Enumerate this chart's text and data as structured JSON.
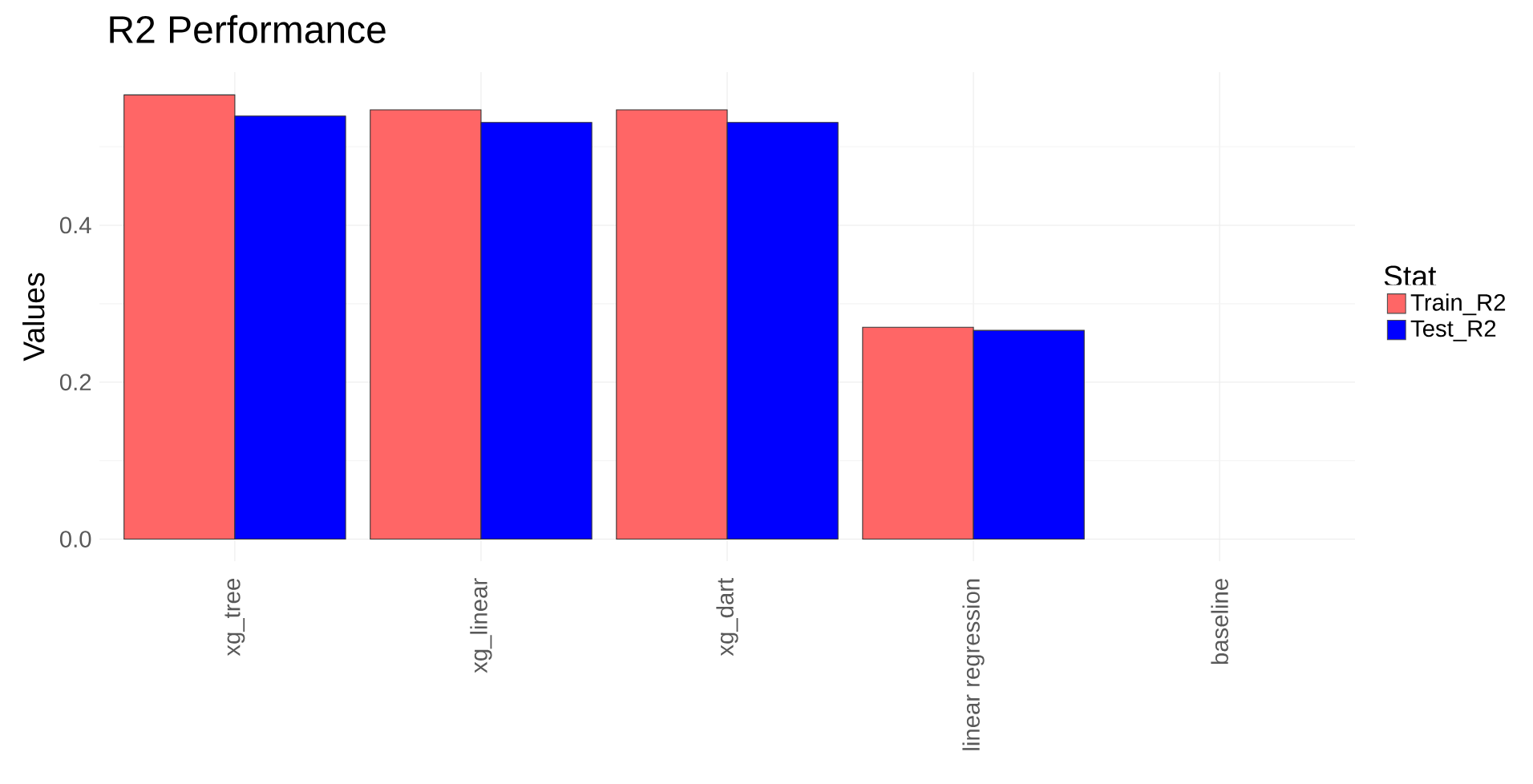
{
  "chart_data": {
    "type": "bar",
    "title": "R2 Performance",
    "ylabel": "Values",
    "legend_title": "Stat",
    "categories": [
      "xg_tree",
      "xg_linear",
      "xg_dart",
      "linear regression",
      "baseline"
    ],
    "series": [
      {
        "name": "Train_R2",
        "color": "#ff6666",
        "values": [
          0.566,
          0.547,
          0.547,
          0.27,
          null
        ]
      },
      {
        "name": "Test_R2",
        "color": "#0000ff",
        "values": [
          0.539,
          0.531,
          0.531,
          0.266,
          null
        ]
      }
    ],
    "ylim": [
      -0.028,
      0.595
    ],
    "yticks": [
      {
        "value": 0,
        "label": "0.0"
      },
      0.2,
      0.4
    ],
    "grid": true,
    "legend": "right"
  }
}
